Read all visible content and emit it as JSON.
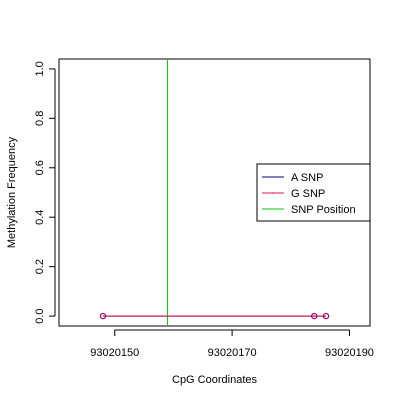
{
  "chart_data": {
    "type": "line",
    "title": "",
    "xlabel": "CpG Coordinates",
    "ylabel": "Methylation Frequency",
    "xlim": [
      93020140.5,
      93020193.5
    ],
    "ylim": [
      -0.04,
      1.04
    ],
    "x_ticks": [
      93020150,
      93020170,
      93020190
    ],
    "x_tick_labels": [
      "93020150",
      "93020170",
      "93020190"
    ],
    "y_ticks": [
      0,
      0.2,
      0.4,
      0.6,
      0.8,
      1.0
    ],
    "y_tick_labels": [
      "0.0",
      "0.2",
      "0.4",
      "0.6",
      "0.8",
      "1.0"
    ],
    "grid": false,
    "legend_position": "right",
    "series": [
      {
        "name": "A SNP",
        "color": "#00008B",
        "x": [
          93020148,
          93020184,
          93020186
        ],
        "y": [
          0,
          0,
          0
        ]
      },
      {
        "name": "G SNP",
        "color": "#DC143C",
        "x": [
          93020148,
          93020184,
          93020186
        ],
        "y": [
          0,
          0,
          0
        ]
      }
    ],
    "snp_position": {
      "name": "SNP Position",
      "x": 93020159,
      "color": "#00CC00"
    },
    "legend": [
      {
        "label": "A SNP",
        "color": "#00008B"
      },
      {
        "label": "G SNP",
        "color": "#DC143C"
      },
      {
        "label": "SNP Position",
        "color": "#00CC00"
      }
    ]
  }
}
